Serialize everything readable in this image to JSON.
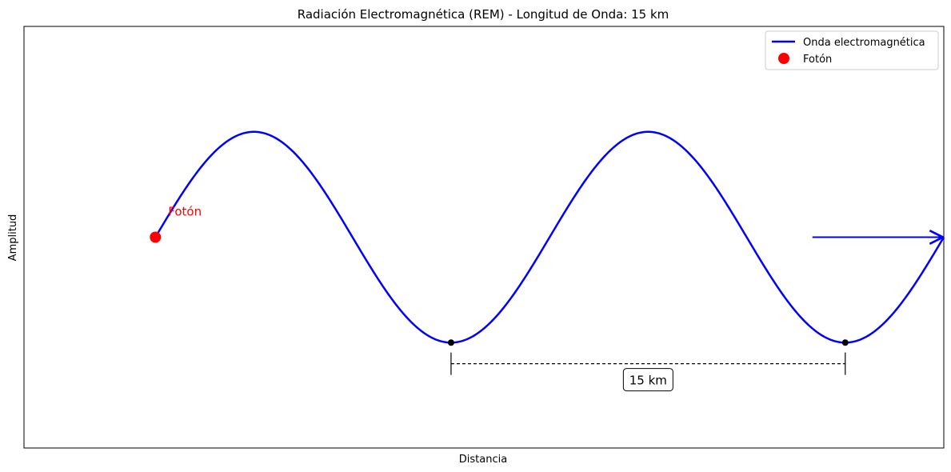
{
  "chart_data": {
    "type": "line",
    "title": "Radiación Electromagnética (REM) - Longitud de Onda: 15 km",
    "xlabel": "Distancia",
    "ylabel": "Amplitud",
    "xlim": [
      0,
      35
    ],
    "ylim": [
      -2,
      2
    ],
    "x_ticks_visible": false,
    "y_ticks_visible": false,
    "grid": false,
    "legend_position": "top-right",
    "wave": {
      "name": "Onda electromagnética",
      "color": "#0000ff",
      "amplitude": 1,
      "wavelength": 15,
      "x_start": 5,
      "x_end": 35,
      "phase_offset": 5
    },
    "photon": {
      "name": "Fotón",
      "label": "Fotón",
      "color": "#ff0000",
      "x": 5,
      "y": 0
    },
    "troughs": [
      {
        "x": 16.25,
        "y": -1
      },
      {
        "x": 31.25,
        "y": -1
      }
    ],
    "wavelength_marker": {
      "x_start": 16.25,
      "x_end": 31.25,
      "y": -1.2,
      "label": "15 km"
    },
    "direction_arrow": {
      "x_start": 30,
      "x_end": 35,
      "y": 0,
      "color": "#0000ff"
    }
  }
}
